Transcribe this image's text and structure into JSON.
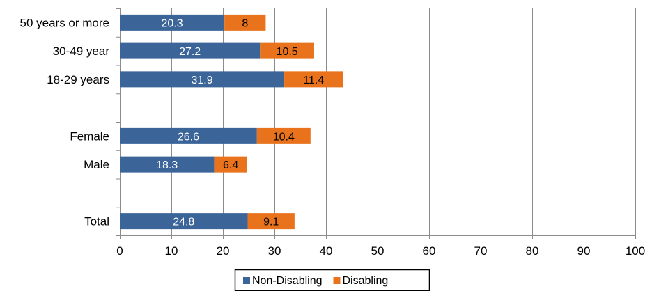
{
  "chart_data": {
    "type": "bar",
    "orientation": "horizontal",
    "stacked": true,
    "categories": [
      "50 years or more",
      "30-49 year",
      "18-29 years",
      "",
      "Female",
      "Male",
      "",
      "Total"
    ],
    "series": [
      {
        "name": "Non-Disabling",
        "color": "#3B6499",
        "label_color": "#FFFFFF",
        "values": [
          20.3,
          27.2,
          31.9,
          null,
          26.6,
          18.3,
          null,
          24.8
        ]
      },
      {
        "name": "Disabling",
        "color": "#E8731C",
        "label_color": "#000000",
        "values": [
          8,
          10.5,
          11.4,
          null,
          10.4,
          6.4,
          null,
          9.1
        ]
      }
    ],
    "xlim": [
      0,
      100
    ],
    "xticks": [
      0,
      10,
      20,
      30,
      40,
      50,
      60,
      70,
      80,
      90,
      100
    ],
    "grid": true,
    "legend_position": "bottom-center",
    "title": "",
    "xlabel": "",
    "ylabel": ""
  }
}
